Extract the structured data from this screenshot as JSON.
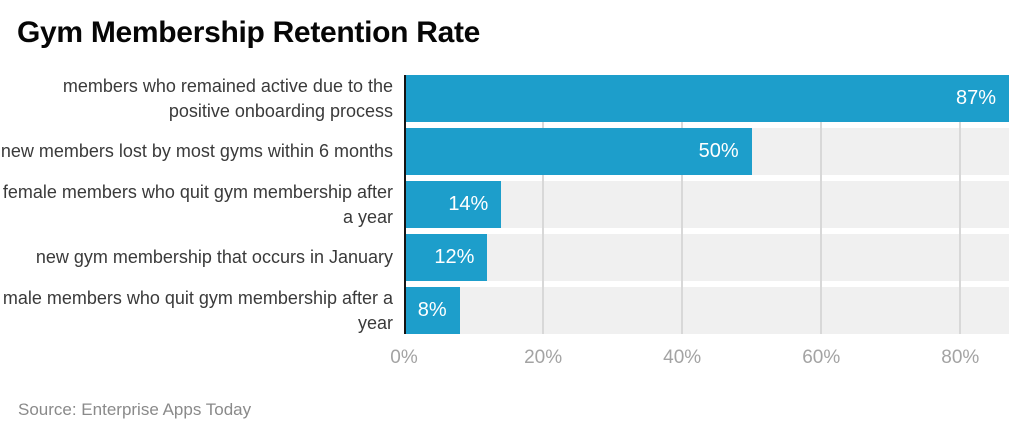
{
  "title": "Gym Membership Retention Rate",
  "source": "Source: Enterprise Apps Today",
  "chart_data": {
    "type": "bar",
    "orientation": "horizontal",
    "title": "Gym Membership Retention Rate",
    "source": "Source: Enterprise Apps Today",
    "categories": [
      "members who remained active due to the positive onboarding process",
      "new members lost by most gyms within 6 months",
      "female members who quit gym membership after a year",
      "new gym membership that occurs in January",
      "male members who quit gym membership after a year"
    ],
    "values": [
      87,
      50,
      14,
      12,
      8
    ],
    "value_labels": [
      "87%",
      "50%",
      "14%",
      "12%",
      "8%"
    ],
    "xlim": [
      0,
      87
    ],
    "x_ticks": [
      {
        "label": "0%",
        "value": 0
      },
      {
        "label": "20%",
        "value": 20
      },
      {
        "label": "40%",
        "value": 40
      },
      {
        "label": "60%",
        "value": 60
      },
      {
        "label": "80%",
        "value": 80
      }
    ],
    "grid": "vertical-gridlines-on",
    "legend": "none",
    "colors": {
      "bar": "#1d9ecb",
      "row_band": "#f0f0f0",
      "grid_line": "#d8d8d8",
      "axis_line": "#141414",
      "value_text": "#ffffff",
      "tick_text": "#a3a3a3",
      "label_text": "#3a3a3a",
      "title_text": "#060606",
      "source_text": "#8a8a8a"
    }
  }
}
